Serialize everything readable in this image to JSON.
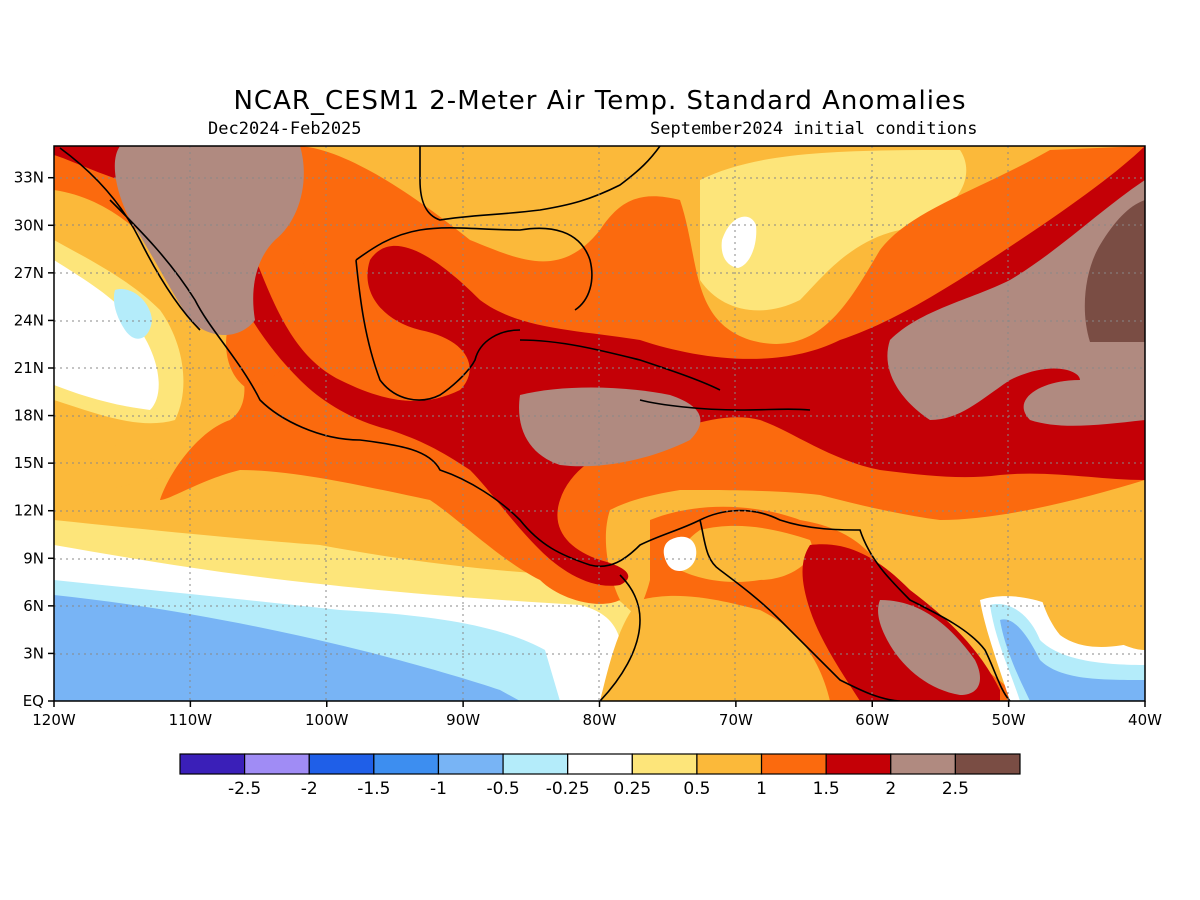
{
  "title": "NCAR_CESM1 2-Meter Air Temp. Standard Anomalies",
  "subtitle_left": "Dec2024-Feb2025",
  "subtitle_right": "September2024 initial conditions",
  "map": {
    "x_ticks": [
      "120W",
      "110W",
      "100W",
      "90W",
      "80W",
      "70W",
      "60W",
      "50W",
      "40W"
    ],
    "y_ticks": [
      "EQ",
      "3N",
      "6N",
      "9N",
      "12N",
      "15N",
      "18N",
      "21N",
      "24N",
      "27N",
      "30N",
      "33N"
    ],
    "lon_range": [
      -120,
      -40
    ],
    "lat_range": [
      0,
      35
    ],
    "grid": "dotted"
  },
  "colorbar": {
    "labels": [
      "-2.5",
      "-2",
      "-1.5",
      "-1",
      "-0.5",
      "-0.25",
      "0.25",
      "0.5",
      "1",
      "1.5",
      "2",
      "2.5"
    ],
    "colors": [
      "#3a1fb8",
      "#a08cf5",
      "#1f5fe8",
      "#3d8ef0",
      "#78b4f5",
      "#b4ecfa",
      "#ffffff",
      "#fde57a",
      "#fbb93a",
      "#fb6a0e",
      "#c40006",
      "#b08a80",
      "#7a4d44"
    ]
  }
}
